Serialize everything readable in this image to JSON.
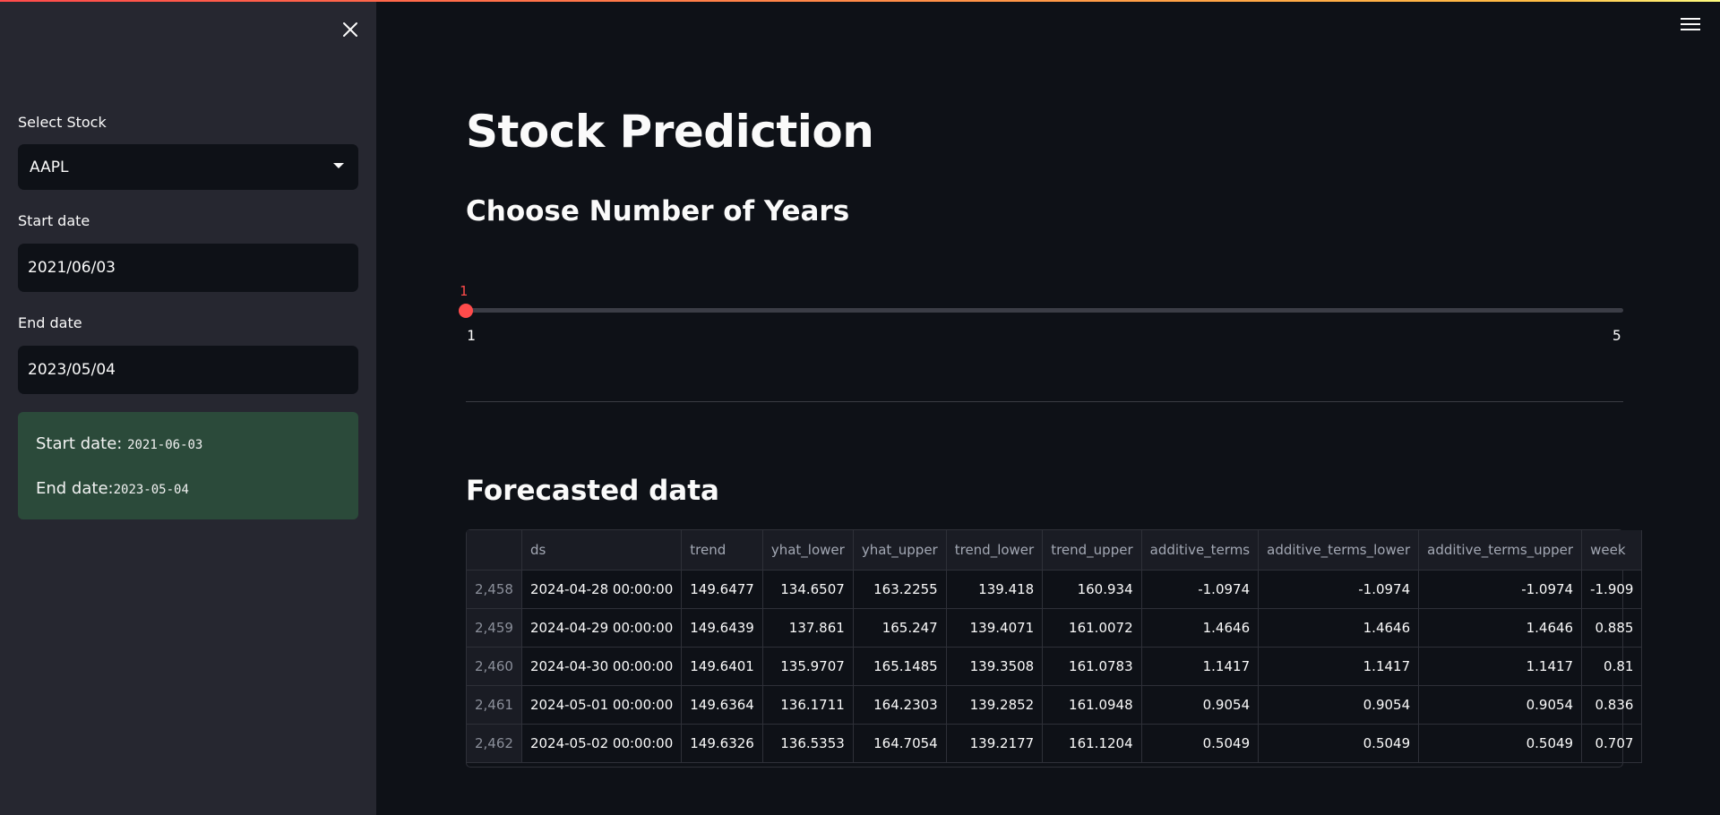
{
  "sidebar": {
    "select_stock_label": "Select Stock",
    "selected_stock": "AAPL",
    "start_date_label": "Start date",
    "start_date_value": "2021/06/03",
    "end_date_label": "End date",
    "end_date_value": "2023/05/04",
    "summary": {
      "start_prefix": "Start date: ",
      "start_value": "2021-06-03",
      "end_prefix": "End date:",
      "end_value": "2023-05-04"
    }
  },
  "main": {
    "title": "Stock Prediction",
    "years_title": "Choose Number of Years",
    "slider": {
      "value": "1",
      "min": "1",
      "max": "5"
    },
    "forecast_title": "Forecasted data"
  },
  "table": {
    "columns": [
      "",
      "ds",
      "trend",
      "yhat_lower",
      "yhat_upper",
      "trend_lower",
      "trend_upper",
      "additive_terms",
      "additive_terms_lower",
      "additive_terms_upper",
      "week"
    ],
    "rows": [
      [
        "2,458",
        "2024-04-28 00:00:00",
        "149.6477",
        "134.6507",
        "163.2255",
        "139.418",
        "160.934",
        "-1.0974",
        "-1.0974",
        "-1.0974",
        "-1.909"
      ],
      [
        "2,459",
        "2024-04-29 00:00:00",
        "149.6439",
        "137.861",
        "165.247",
        "139.4071",
        "161.0072",
        "1.4646",
        "1.4646",
        "1.4646",
        "0.885"
      ],
      [
        "2,460",
        "2024-04-30 00:00:00",
        "149.6401",
        "135.9707",
        "165.1485",
        "139.3508",
        "161.0783",
        "1.1417",
        "1.1417",
        "1.1417",
        "0.81"
      ],
      [
        "2,461",
        "2024-05-01 00:00:00",
        "149.6364",
        "136.1711",
        "164.2303",
        "139.2852",
        "161.0948",
        "0.9054",
        "0.9054",
        "0.9054",
        "0.836"
      ],
      [
        "2,462",
        "2024-05-02 00:00:00",
        "149.6326",
        "136.5353",
        "164.7054",
        "139.2177",
        "161.1204",
        "0.5049",
        "0.5049",
        "0.5049",
        "0.707"
      ]
    ]
  },
  "colors": {
    "accent": "#ff4b4b",
    "background": "#0e1117",
    "sidebar": "#262730",
    "success": "#2b4a3a"
  }
}
